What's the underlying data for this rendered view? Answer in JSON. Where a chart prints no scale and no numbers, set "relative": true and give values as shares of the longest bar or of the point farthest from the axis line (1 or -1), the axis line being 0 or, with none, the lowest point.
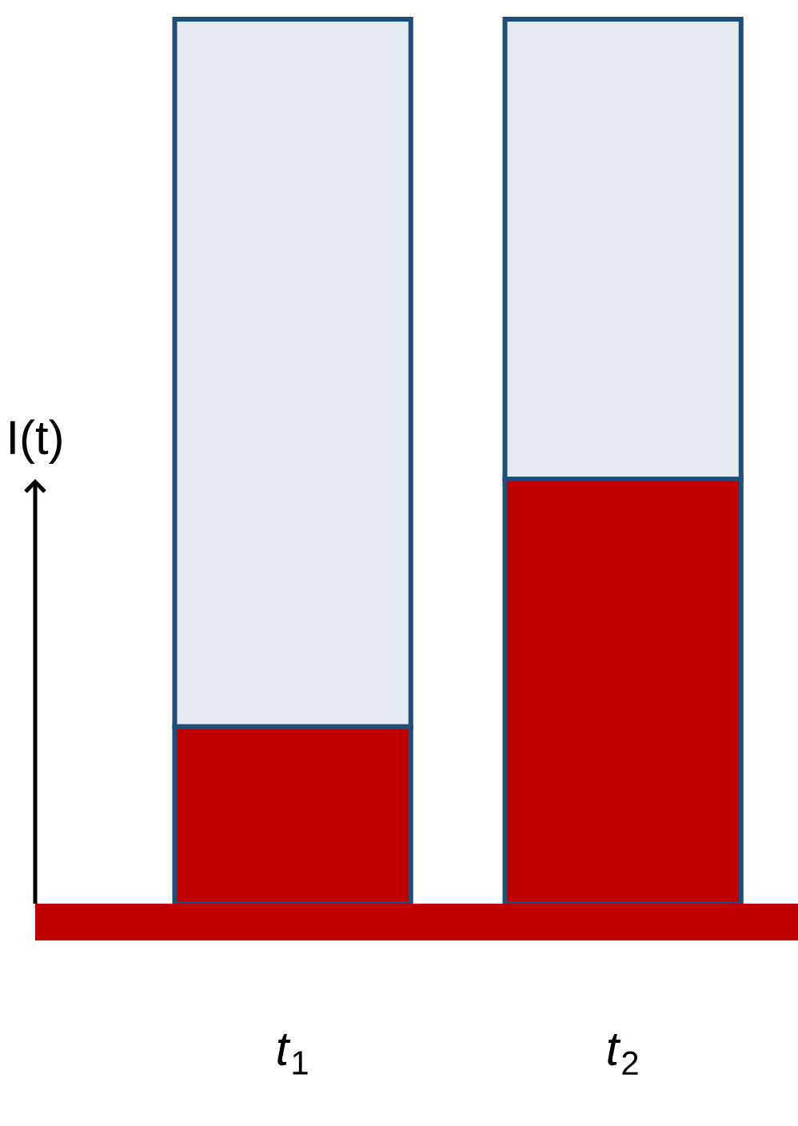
{
  "chart_data": {
    "type": "bar",
    "stacked": true,
    "relative": true,
    "ylabel": "I(t)",
    "categories": [
      "*t*$_{1}$",
      "*t*$_{2}$"
    ],
    "series": [
      {
        "color": "#c00000",
        "values": [
          0.2,
          0.48
        ]
      },
      {
        "color": "#1f4e79",
        "values": [
          0.8,
          0.52
        ]
      }
    ]
  }
}
